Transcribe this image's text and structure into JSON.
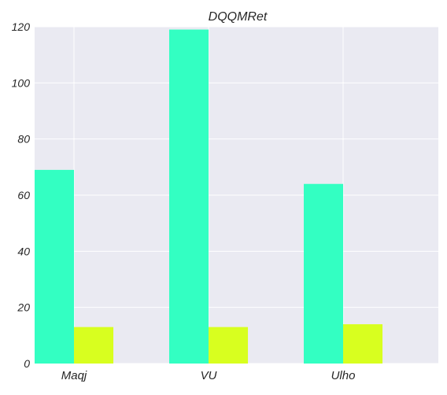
{
  "chart_data": {
    "type": "bar",
    "title": "DQQMRet",
    "xlabel": "",
    "ylabel": "",
    "categories": [
      "Maqj",
      "VU",
      "Ulho"
    ],
    "series": [
      {
        "values": [
          69,
          119,
          64
        ],
        "color": "#33ffc2"
      },
      {
        "values": [
          13,
          13,
          14
        ],
        "color": "#d8ff1f"
      }
    ],
    "ylim": [
      0,
      120
    ],
    "yticks": [
      0,
      20,
      40,
      60,
      80,
      100,
      120
    ],
    "grid": true,
    "legend": "none",
    "plot_background": "#eaeaf2",
    "grid_color": "#ffffff"
  }
}
